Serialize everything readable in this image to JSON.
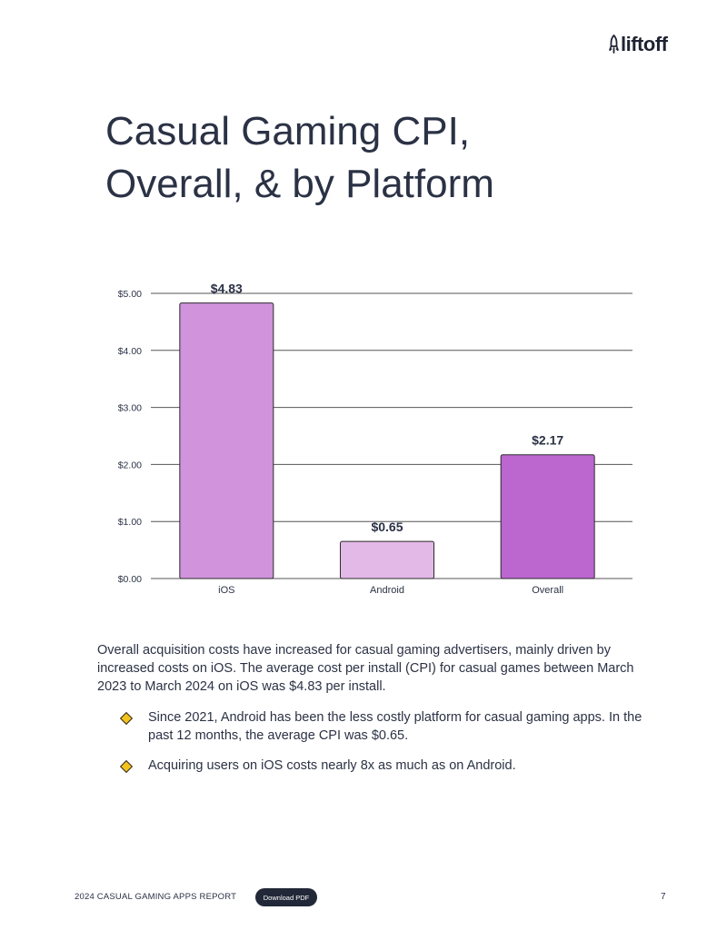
{
  "logo": {
    "text": "liftoff"
  },
  "page_title": {
    "line1": "Casual Gaming CPI,",
    "line2": "Overall, & by Platform"
  },
  "colors": {
    "ios": "#d093dc",
    "android": "#e3b9e8",
    "overall": "#bc66d0",
    "text": "#2b3245",
    "grid": "#555555"
  },
  "chart_data": {
    "type": "bar",
    "categories": [
      "iOS",
      "Android",
      "Overall"
    ],
    "values": [
      4.83,
      0.65,
      2.17
    ],
    "data_labels": [
      "$4.83",
      "$0.65",
      "$2.17"
    ],
    "yticks": [
      0,
      1,
      2,
      3,
      4,
      5
    ],
    "ytick_labels": [
      "$0.00",
      "$1.00",
      "$2.00",
      "$3.00",
      "$4.00",
      "$5.00"
    ],
    "ylim": [
      0,
      5
    ],
    "title": "",
    "xlabel": "",
    "ylabel": "",
    "grid": true
  },
  "body_text": "Overall acquisition costs have increased for casual gaming advertisers, mainly driven by increased costs on iOS. The average cost per install (CPI) for casual games between March 2023 to March 2024 on iOS was $4.83 per install.",
  "bullets": [
    "Since 2021, Android has been the less costly platform for casual gaming apps. In the past 12 months, the average CPI was $0.65.",
    "Acquiring users on iOS costs nearly 8x as much as on Android."
  ],
  "footer": {
    "report_title": "2024 CASUAL GAMING APPS REPORT",
    "download_label": "Download PDF",
    "page_number": "7"
  }
}
